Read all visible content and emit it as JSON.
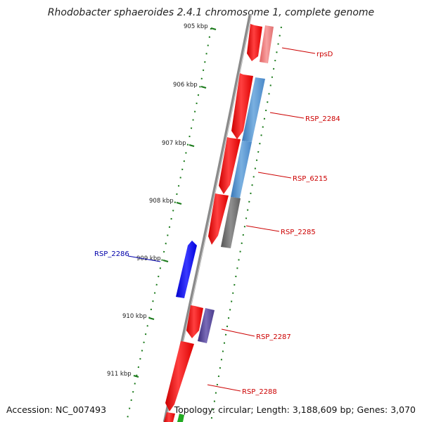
{
  "title": "Rhodobacter sphaeroides 2.4.1 chromosome 1, complete genome",
  "footer": {
    "accession": "Accession: NC_007493",
    "summary": "Topology: circular; Length: 3,188,609 bp; Genes: 3,070"
  },
  "ticks": [
    {
      "label": "905 kbp"
    },
    {
      "label": "906 kbp"
    },
    {
      "label": "907 kbp"
    },
    {
      "label": "908 kbp"
    },
    {
      "label": "909 kbp"
    },
    {
      "label": "910 kbp"
    },
    {
      "label": "911 kbp"
    }
  ],
  "genes": [
    {
      "name": "rpsD",
      "color": "#cc0000"
    },
    {
      "name": "RSP_2284",
      "color": "#cc0000"
    },
    {
      "name": "RSP_6215",
      "color": "#cc0000"
    },
    {
      "name": "RSP_2285",
      "color": "#cc0000"
    },
    {
      "name": "RSP_2286",
      "color": "#0000aa"
    },
    {
      "name": "RSP_2287",
      "color": "#cc0000"
    },
    {
      "name": "RSP_2288",
      "color": "#cc0000"
    }
  ],
  "colors": {
    "backbone": "#8a8a8a",
    "tick": "#1a7a1a",
    "gene_forward": "#ff0000",
    "gene_reverse": "#0000ff",
    "cds_light": "#f08080",
    "cds_blue": "#4f8fcf",
    "cds_gray": "#707070",
    "cds_purple": "#4b3c8c",
    "cds_green": "#22aa22"
  }
}
